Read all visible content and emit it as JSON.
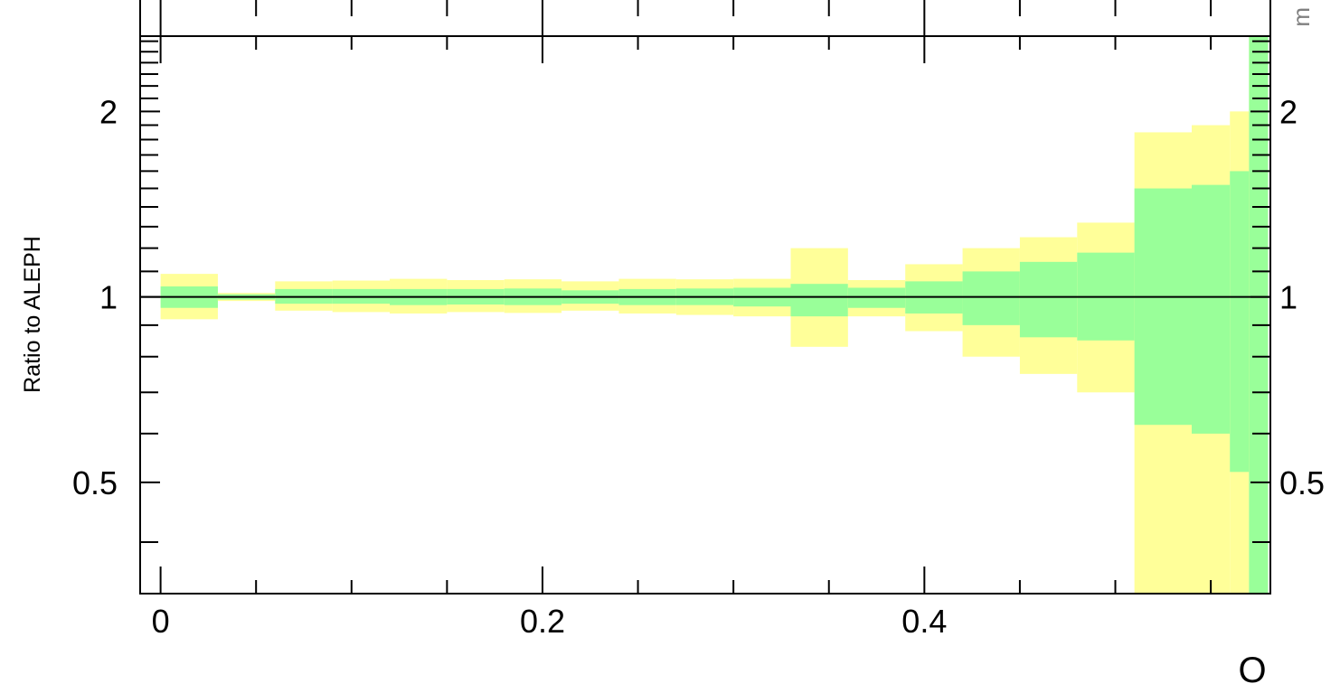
{
  "chart_data": {
    "type": "area",
    "xlabel": "O",
    "ylabel": "Ratio to ALEPH",
    "corner_text": "m",
    "xlim": [
      -0.0107,
      0.5812
    ],
    "ylim": [
      0.33,
      2.65
    ],
    "y_scale": "log",
    "x_ticks": [
      "0",
      "0.2",
      "0.4"
    ],
    "y_ticks": [
      "0.5",
      "1",
      "2"
    ],
    "y_ticks_right": [
      "0.5",
      "1",
      "2"
    ],
    "reference_line": 1,
    "colors": {
      "stat_band": "#99ff99",
      "total_band": "#ffff99",
      "axes": "#000000",
      "corner": "#808080"
    },
    "bins": [
      {
        "x0": 0.0,
        "x1": 0.03,
        "outer": [
          0.92,
          1.09
        ],
        "inner": [
          0.96,
          1.04
        ]
      },
      {
        "x0": 0.03,
        "x1": 0.06,
        "outer": [
          0.985,
          1.015
        ],
        "inner": [
          0.99,
          1.01
        ]
      },
      {
        "x0": 0.06,
        "x1": 0.09,
        "outer": [
          0.95,
          1.06
        ],
        "inner": [
          0.975,
          1.03
        ]
      },
      {
        "x0": 0.09,
        "x1": 0.12,
        "outer": [
          0.945,
          1.063
        ],
        "inner": [
          0.975,
          1.03
        ]
      },
      {
        "x0": 0.12,
        "x1": 0.15,
        "outer": [
          0.94,
          1.07
        ],
        "inner": [
          0.97,
          1.03
        ]
      },
      {
        "x0": 0.15,
        "x1": 0.18,
        "outer": [
          0.945,
          1.065
        ],
        "inner": [
          0.972,
          1.03
        ]
      },
      {
        "x0": 0.18,
        "x1": 0.21,
        "outer": [
          0.942,
          1.068
        ],
        "inner": [
          0.97,
          1.032
        ]
      },
      {
        "x0": 0.21,
        "x1": 0.24,
        "outer": [
          0.95,
          1.06
        ],
        "inner": [
          0.975,
          1.025
        ]
      },
      {
        "x0": 0.24,
        "x1": 0.27,
        "outer": [
          0.94,
          1.07
        ],
        "inner": [
          0.97,
          1.03
        ]
      },
      {
        "x0": 0.27,
        "x1": 0.3,
        "outer": [
          0.935,
          1.068
        ],
        "inner": [
          0.97,
          1.032
        ]
      },
      {
        "x0": 0.3,
        "x1": 0.33,
        "outer": [
          0.93,
          1.07
        ],
        "inner": [
          0.965,
          1.035
        ]
      },
      {
        "x0": 0.33,
        "x1": 0.36,
        "outer": [
          0.83,
          1.2
        ],
        "inner": [
          0.93,
          1.05
        ]
      },
      {
        "x0": 0.36,
        "x1": 0.39,
        "outer": [
          0.93,
          1.065
        ],
        "inner": [
          0.96,
          1.035
        ]
      },
      {
        "x0": 0.39,
        "x1": 0.42,
        "outer": [
          0.88,
          1.13
        ],
        "inner": [
          0.94,
          1.06
        ]
      },
      {
        "x0": 0.42,
        "x1": 0.45,
        "outer": [
          0.8,
          1.2
        ],
        "inner": [
          0.9,
          1.1
        ]
      },
      {
        "x0": 0.45,
        "x1": 0.48,
        "outer": [
          0.75,
          1.25
        ],
        "inner": [
          0.86,
          1.14
        ]
      },
      {
        "x0": 0.48,
        "x1": 0.51,
        "outer": [
          0.7,
          1.32
        ],
        "inner": [
          0.85,
          1.18
        ]
      },
      {
        "x0": 0.51,
        "x1": 0.54,
        "outer": [
          0.33,
          1.85
        ],
        "inner": [
          0.62,
          1.5
        ]
      },
      {
        "x0": 0.54,
        "x1": 0.56,
        "outer": [
          0.33,
          1.9
        ],
        "inner": [
          0.6,
          1.52
        ]
      },
      {
        "x0": 0.56,
        "x1": 0.57,
        "outer": [
          0.33,
          2.0
        ],
        "inner": [
          0.52,
          1.6
        ]
      },
      {
        "x0": 0.57,
        "x1": 0.58,
        "outer": [
          0.33,
          2.65
        ],
        "inner": [
          0.33,
          2.65
        ]
      }
    ]
  }
}
